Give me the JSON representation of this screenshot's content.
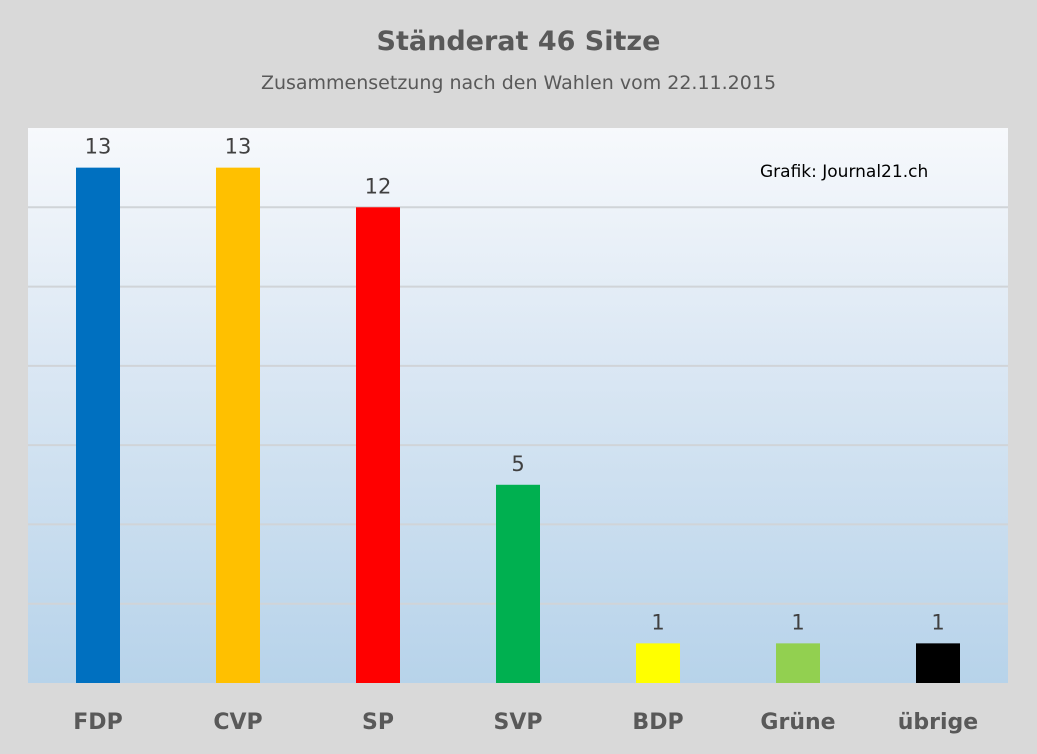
{
  "chart_data": {
    "type": "bar",
    "title": "Ständerat 46 Sitze",
    "subtitle": "Zusammensetzung nach den Wahlen vom 22.11.2015",
    "annotation": "Grafik: Journal21.ch",
    "categories": [
      "FDP",
      "CVP",
      "SP",
      "SVP",
      "BDP",
      "Grüne",
      "übrige"
    ],
    "values": [
      13,
      13,
      12,
      5,
      1,
      1,
      1
    ],
    "colors": [
      "#0070c0",
      "#ffc000",
      "#ff0000",
      "#00b050",
      "#ffff00",
      "#92d050",
      "#000000"
    ],
    "ylim": [
      0,
      14
    ],
    "grid": true,
    "legend": "none"
  }
}
